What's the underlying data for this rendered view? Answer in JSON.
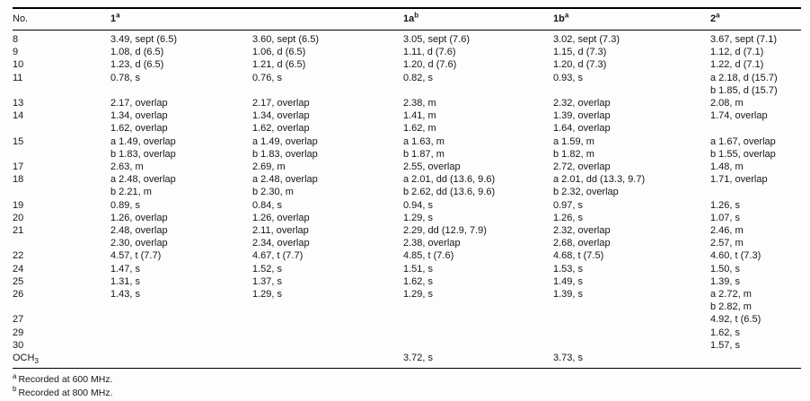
{
  "table": {
    "headers": [
      {
        "text": "No."
      },
      {
        "text": "1",
        "sup": "a"
      },
      {
        "text": ""
      },
      {
        "text": "1a",
        "sup": "b"
      },
      {
        "text": "1b",
        "sup": "a"
      },
      {
        "text": "2",
        "sup": "a"
      }
    ],
    "rows": [
      {
        "no": "8",
        "cells": [
          [
            "3.49, sept (6.5)"
          ],
          [
            "3.60, sept (6.5)"
          ],
          [
            "3.05, sept (7.6)"
          ],
          [
            "3.02, sept (7.3)"
          ],
          [
            "3.67, sept (7.1)"
          ]
        ]
      },
      {
        "no": "9",
        "cells": [
          [
            "1.08, d (6.5)"
          ],
          [
            "1.06, d (6.5)"
          ],
          [
            "1.11, d (7.6)"
          ],
          [
            "1.15, d (7.3)"
          ],
          [
            "1.12, d (7.1)"
          ]
        ]
      },
      {
        "no": "10",
        "cells": [
          [
            "1.23, d (6.5)"
          ],
          [
            "1.21, d (6.5)"
          ],
          [
            "1.20, d (7.6)"
          ],
          [
            "1.20, d (7.3)"
          ],
          [
            "1.22, d (7.1)"
          ]
        ]
      },
      {
        "no": "11",
        "cells": [
          [
            "0.78, s"
          ],
          [
            "0.76, s"
          ],
          [
            "0.82, s"
          ],
          [
            "0.93, s"
          ],
          [
            "a 2.18, d (15.7)",
            "b 1.85, d (15.7)"
          ]
        ]
      },
      {
        "no": "13",
        "cells": [
          [
            "2.17, overlap"
          ],
          [
            "2.17, overlap"
          ],
          [
            "2.38, m"
          ],
          [
            "2.32, overlap"
          ],
          [
            "2.08, m"
          ]
        ]
      },
      {
        "no": "14",
        "cells": [
          [
            "1.34, overlap",
            "1.62, overlap"
          ],
          [
            "1.34, overlap",
            "1.62, overlap"
          ],
          [
            "1.41, m",
            "1.62, m"
          ],
          [
            "1.39, overlap",
            "1.64, overlap"
          ],
          [
            "1.74, overlap"
          ]
        ]
      },
      {
        "no": "15",
        "cells": [
          [
            "a 1.49, overlap",
            "b 1.83, overlap"
          ],
          [
            "a 1.49, overlap",
            "b 1.83, overlap"
          ],
          [
            "a 1.63, m",
            "b 1.87, m"
          ],
          [
            "a 1.59, m",
            "b 1.82, m"
          ],
          [
            "a 1.67, overlap",
            "b 1.55, overlap"
          ]
        ]
      },
      {
        "no": "17",
        "cells": [
          [
            "2.63, m"
          ],
          [
            "2.69, m"
          ],
          [
            "2.55, overlap"
          ],
          [
            "2.72, overlap"
          ],
          [
            "1.48, m"
          ]
        ]
      },
      {
        "no": "18",
        "cells": [
          [
            "a 2.48, overlap",
            "b 2.21, m"
          ],
          [
            "a 2.48, overlap",
            "b 2.30, m"
          ],
          [
            "a 2.01, dd (13.6, 9.6)",
            "b 2.62, dd (13.6, 9.6)"
          ],
          [
            "a 2.01, dd (13.3, 9.7)",
            "b 2.32, overlap"
          ],
          [
            "1.71, overlap"
          ]
        ]
      },
      {
        "no": "19",
        "cells": [
          [
            "0.89, s"
          ],
          [
            "0.84, s"
          ],
          [
            "0.94, s"
          ],
          [
            "0.97, s"
          ],
          [
            "1.26, s"
          ]
        ]
      },
      {
        "no": "20",
        "cells": [
          [
            "1.26, overlap"
          ],
          [
            "1.26, overlap"
          ],
          [
            "1.29, s"
          ],
          [
            "1.26, s"
          ],
          [
            "1.07, s"
          ]
        ]
      },
      {
        "no": "21",
        "cells": [
          [
            "2.48, overlap",
            "2.30, overlap"
          ],
          [
            "2.11, overlap",
            "2.34, overlap"
          ],
          [
            "2.29, dd (12.9, 7.9)",
            "2.38, overlap"
          ],
          [
            "2.32, overlap",
            "2.68, overlap"
          ],
          [
            "2.46, m",
            "2.57, m"
          ]
        ]
      },
      {
        "no": "22",
        "cells": [
          [
            "4.57, t (7.7)"
          ],
          [
            "4.67, t (7.7)"
          ],
          [
            "4.85, t (7.6)"
          ],
          [
            "4.68, t (7.5)"
          ],
          [
            "4.60, t (7.3)"
          ]
        ]
      },
      {
        "no": "24",
        "cells": [
          [
            "1.47, s"
          ],
          [
            "1.52, s"
          ],
          [
            "1.51, s"
          ],
          [
            "1.53, s"
          ],
          [
            "1.50, s"
          ]
        ]
      },
      {
        "no": "25",
        "cells": [
          [
            "1.31, s"
          ],
          [
            "1.37, s"
          ],
          [
            "1.62, s"
          ],
          [
            "1.49, s"
          ],
          [
            "1.39, s"
          ]
        ]
      },
      {
        "no": "26",
        "cells": [
          [
            "1.43, s"
          ],
          [
            "1.29, s"
          ],
          [
            "1.29, s"
          ],
          [
            "1.39, s"
          ],
          [
            "a 2.72, m",
            "b 2.82, m"
          ]
        ]
      },
      {
        "no": "27",
        "cells": [
          [],
          [],
          [],
          [],
          [
            "4.92, t (6.5)"
          ]
        ]
      },
      {
        "no": "29",
        "cells": [
          [],
          [],
          [],
          [],
          [
            "1.62, s"
          ]
        ]
      },
      {
        "no": "30",
        "cells": [
          [],
          [],
          [],
          [],
          [
            "1.57, s"
          ]
        ]
      },
      {
        "no": {
          "text": "OCH",
          "sub": "3"
        },
        "cells": [
          [],
          [],
          [
            "3.72, s"
          ],
          [
            "3.73, s"
          ],
          []
        ]
      }
    ]
  },
  "footnotes": [
    {
      "sup": "a",
      "text": "Recorded at 600 MHz."
    },
    {
      "sup": "b",
      "text": "Recorded at 800 MHz."
    }
  ]
}
